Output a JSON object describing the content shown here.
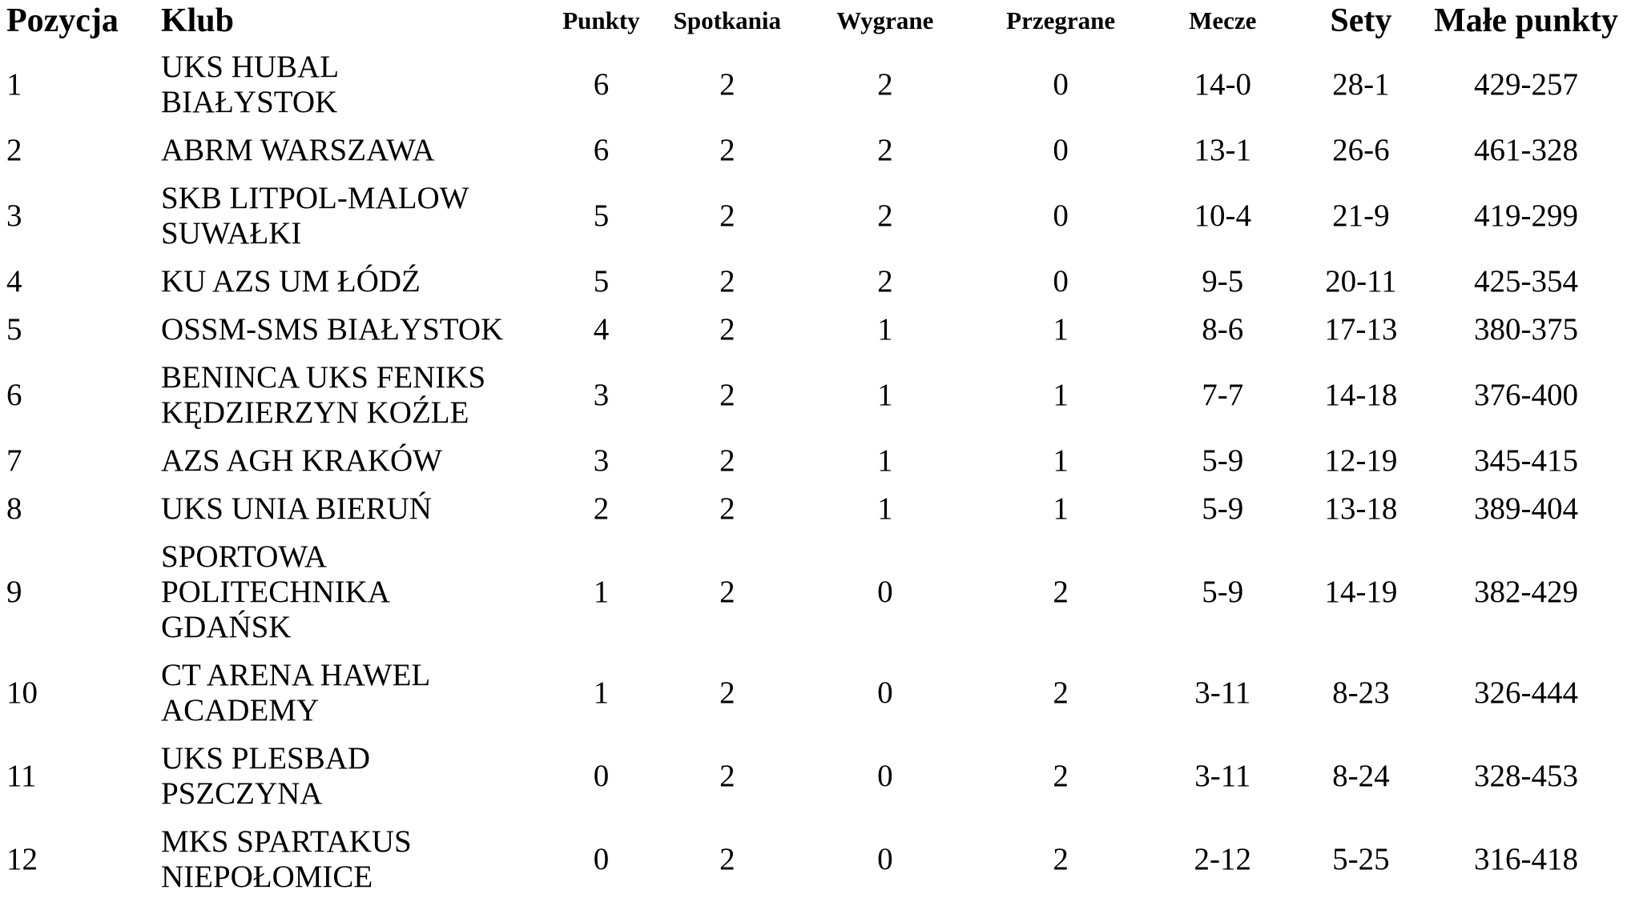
{
  "table": {
    "columns": [
      {
        "key": "pozycja",
        "label": "Pozycja"
      },
      {
        "key": "klub",
        "label": "Klub"
      },
      {
        "key": "punkty",
        "label": "Punkty"
      },
      {
        "key": "spotkania",
        "label": "Spotkania"
      },
      {
        "key": "wygrane",
        "label": "Wygrane"
      },
      {
        "key": "przegrane",
        "label": "Przegrane"
      },
      {
        "key": "mecze",
        "label": "Mecze"
      },
      {
        "key": "sety",
        "label": "Sety"
      },
      {
        "key": "male_punkty",
        "label": "Małe punkty"
      }
    ],
    "rows": [
      {
        "pozycja": "1",
        "klub": "UKS HUBAL\nBIAŁYSTOK",
        "punkty": "6",
        "spotkania": "2",
        "wygrane": "2",
        "przegrane": "0",
        "mecze": "14-0",
        "sety": "28-1",
        "male_punkty": "429-257"
      },
      {
        "pozycja": "2",
        "klub": "ABRM WARSZAWA",
        "punkty": "6",
        "spotkania": "2",
        "wygrane": "2",
        "przegrane": "0",
        "mecze": "13-1",
        "sety": "26-6",
        "male_punkty": "461-328"
      },
      {
        "pozycja": "3",
        "klub": "SKB LITPOL-MALOW\nSUWAŁKI",
        "punkty": "5",
        "spotkania": "2",
        "wygrane": "2",
        "przegrane": "0",
        "mecze": "10-4",
        "sety": "21-9",
        "male_punkty": "419-299"
      },
      {
        "pozycja": "4",
        "klub": "KU AZS UM ŁÓDŹ",
        "punkty": "5",
        "spotkania": "2",
        "wygrane": "2",
        "przegrane": "0",
        "mecze": "9-5",
        "sety": "20-11",
        "male_punkty": "425-354"
      },
      {
        "pozycja": "5",
        "klub": "OSSM-SMS BIAŁYSTOK",
        "punkty": "4",
        "spotkania": "2",
        "wygrane": "1",
        "przegrane": "1",
        "mecze": "8-6",
        "sety": "17-13",
        "male_punkty": "380-375"
      },
      {
        "pozycja": "6",
        "klub": "BENINCA UKS FENIKS\nKĘDZIERZYN KOŹLE",
        "punkty": "3",
        "spotkania": "2",
        "wygrane": "1",
        "przegrane": "1",
        "mecze": "7-7",
        "sety": "14-18",
        "male_punkty": "376-400"
      },
      {
        "pozycja": "7",
        "klub": "AZS AGH KRAKÓW",
        "punkty": "3",
        "spotkania": "2",
        "wygrane": "1",
        "przegrane": "1",
        "mecze": "5-9",
        "sety": "12-19",
        "male_punkty": "345-415"
      },
      {
        "pozycja": "8",
        "klub": "UKS UNIA BIERUŃ",
        "punkty": "2",
        "spotkania": "2",
        "wygrane": "1",
        "przegrane": "1",
        "mecze": "5-9",
        "sety": "13-18",
        "male_punkty": "389-404"
      },
      {
        "pozycja": "9",
        "klub": "SPORTOWA\nPOLITECHNIKA\nGDAŃSK",
        "punkty": "1",
        "spotkania": "2",
        "wygrane": "0",
        "przegrane": "2",
        "mecze": "5-9",
        "sety": "14-19",
        "male_punkty": "382-429"
      },
      {
        "pozycja": "10",
        "klub": "CT ARENA HAWEL\nACADEMY",
        "punkty": "1",
        "spotkania": "2",
        "wygrane": "0",
        "przegrane": "2",
        "mecze": "3-11",
        "sety": "8-23",
        "male_punkty": "326-444"
      },
      {
        "pozycja": "11",
        "klub": "UKS PLESBAD\nPSZCZYNA",
        "punkty": "0",
        "spotkania": "2",
        "wygrane": "0",
        "przegrane": "2",
        "mecze": "3-11",
        "sety": "8-24",
        "male_punkty": "328-453"
      },
      {
        "pozycja": "12",
        "klub": "MKS SPARTAKUS\nNIEPOŁOMICE",
        "punkty": "0",
        "spotkania": "2",
        "wygrane": "0",
        "przegrane": "2",
        "mecze": "2-12",
        "sety": "5-25",
        "male_punkty": "316-418"
      }
    ]
  }
}
